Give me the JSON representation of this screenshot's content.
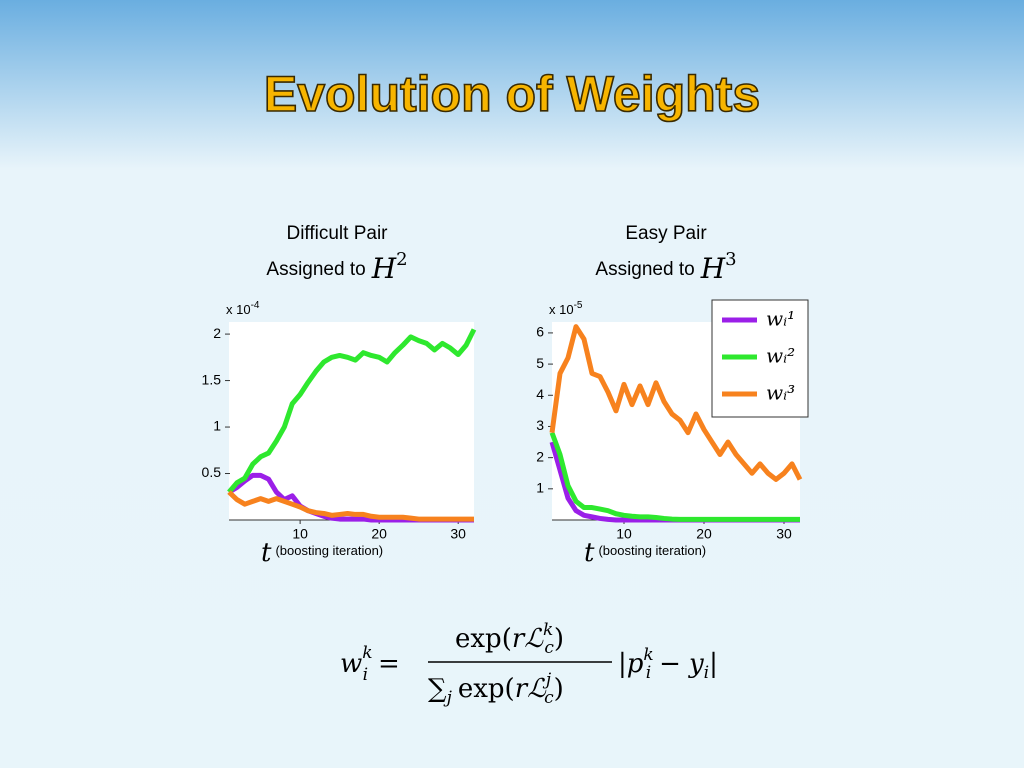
{
  "title": "Evolution of Weights",
  "chart_data": [
    {
      "type": "line",
      "title": "Difficult Pair",
      "subtitle": "Assigned to",
      "subtitle_math": [
        "H",
        "2"
      ],
      "multiplier": [
        "x 10",
        "-4"
      ],
      "xlabel_math": "t",
      "xlabel": "(boosting iteration)",
      "x": [
        1,
        2,
        3,
        4,
        5,
        6,
        7,
        8,
        9,
        10,
        11,
        12,
        13,
        14,
        15,
        16,
        17,
        18,
        19,
        20,
        21,
        22,
        23,
        24,
        25,
        26,
        27,
        28,
        29,
        30,
        31,
        32
      ],
      "xlim": [
        1,
        32
      ],
      "xticks": [
        10,
        20,
        30
      ],
      "ylim": [
        0,
        2.13
      ],
      "yticks": [
        0.5,
        1,
        1.5,
        2
      ],
      "series": [
        {
          "name": "wᵢ¹",
          "color": "#9b1fe8",
          "values": [
            0.3,
            0.35,
            0.42,
            0.48,
            0.48,
            0.44,
            0.3,
            0.22,
            0.26,
            0.15,
            0.1,
            0.07,
            0.04,
            0.02,
            0.01,
            0.01,
            0.01,
            0.01,
            0,
            0,
            0,
            0,
            0,
            0,
            0,
            0,
            0,
            0,
            0,
            0,
            0,
            0
          ]
        },
        {
          "name": "wᵢ²",
          "color": "#2ee82e",
          "values": [
            0.3,
            0.4,
            0.45,
            0.6,
            0.68,
            0.72,
            0.85,
            1.0,
            1.25,
            1.35,
            1.48,
            1.6,
            1.7,
            1.75,
            1.77,
            1.75,
            1.72,
            1.8,
            1.77,
            1.75,
            1.7,
            1.8,
            1.88,
            1.97,
            1.93,
            1.9,
            1.83,
            1.9,
            1.85,
            1.78,
            1.88,
            2.05
          ]
        },
        {
          "name": "wᵢ³",
          "color": "#f7821e",
          "values": [
            0.3,
            0.22,
            0.17,
            0.2,
            0.23,
            0.2,
            0.23,
            0.2,
            0.17,
            0.14,
            0.1,
            0.08,
            0.07,
            0.05,
            0.06,
            0.07,
            0.06,
            0.06,
            0.04,
            0.03,
            0.03,
            0.03,
            0.03,
            0.02,
            0.01,
            0.01,
            0.01,
            0.01,
            0.01,
            0.01,
            0.01,
            0.01
          ]
        }
      ]
    },
    {
      "type": "line",
      "title": "Easy Pair",
      "subtitle": "Assigned to",
      "subtitle_math": [
        "H",
        "3"
      ],
      "multiplier": [
        "x 10",
        "-5"
      ],
      "xlabel_math": "t",
      "xlabel": "(boosting iteration)",
      "x": [
        1,
        2,
        3,
        4,
        5,
        6,
        7,
        8,
        9,
        10,
        11,
        12,
        13,
        14,
        15,
        16,
        17,
        18,
        19,
        20,
        21,
        22,
        23,
        24,
        25,
        26,
        27,
        28,
        29,
        30,
        31,
        32
      ],
      "xlim": [
        1,
        32
      ],
      "xticks": [
        10,
        20,
        30
      ],
      "ylim": [
        0,
        6.35
      ],
      "yticks": [
        1,
        2,
        3,
        4,
        5,
        6
      ],
      "legend": "upper right",
      "series": [
        {
          "name": "wᵢ¹",
          "color": "#9b1fe8",
          "values": [
            2.5,
            1.6,
            0.7,
            0.3,
            0.15,
            0.1,
            0.05,
            0.02,
            0,
            0,
            0,
            0,
            0,
            0,
            0,
            0,
            0,
            0,
            0,
            0,
            0,
            0,
            0,
            0,
            0,
            0,
            0,
            0,
            0,
            0,
            0,
            0
          ]
        },
        {
          "name": "wᵢ²",
          "color": "#2ee82e",
          "values": [
            2.8,
            2.1,
            1.1,
            0.6,
            0.4,
            0.4,
            0.35,
            0.3,
            0.2,
            0.15,
            0.12,
            0.1,
            0.1,
            0.08,
            0.05,
            0.03,
            0.02,
            0.02,
            0.02,
            0.02,
            0.02,
            0.02,
            0.02,
            0.02,
            0.02,
            0.02,
            0.02,
            0.02,
            0.02,
            0.02,
            0.02,
            0.02
          ]
        },
        {
          "name": "wᵢ³",
          "color": "#f7821e",
          "values": [
            2.8,
            4.7,
            5.2,
            6.2,
            5.8,
            4.7,
            4.6,
            4.1,
            3.5,
            4.35,
            3.7,
            4.3,
            3.7,
            4.4,
            3.8,
            3.4,
            3.2,
            2.8,
            3.4,
            2.9,
            2.5,
            2.1,
            2.5,
            2.1,
            1.8,
            1.5,
            1.8,
            1.5,
            1.3,
            1.5,
            1.8,
            1.3
          ]
        }
      ]
    }
  ],
  "formula": {
    "lhs": [
      "w",
      "k",
      "i",
      "="
    ],
    "numerator": [
      "exp(",
      "r",
      "ℒ",
      "k",
      "c",
      ")"
    ],
    "denominator": [
      "∑",
      "j",
      "exp(",
      "r",
      "ℒ",
      "j",
      "c",
      ")"
    ],
    "abs": [
      "|",
      "p",
      "k",
      "i",
      "−",
      "y",
      "i",
      "|"
    ]
  }
}
